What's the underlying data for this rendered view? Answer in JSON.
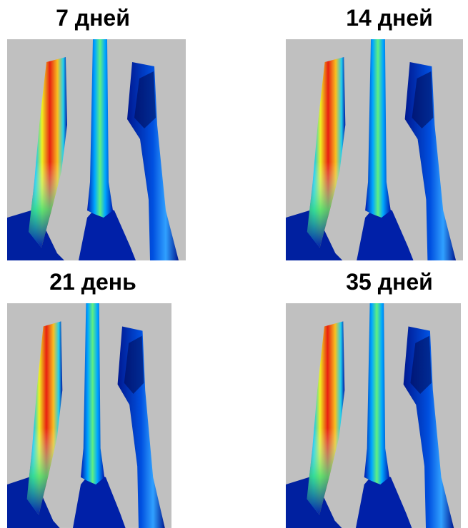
{
  "panels": [
    {
      "title": "7 дней"
    },
    {
      "title": "14 дней"
    },
    {
      "title": "21 день"
    },
    {
      "title": "35 дней"
    }
  ]
}
